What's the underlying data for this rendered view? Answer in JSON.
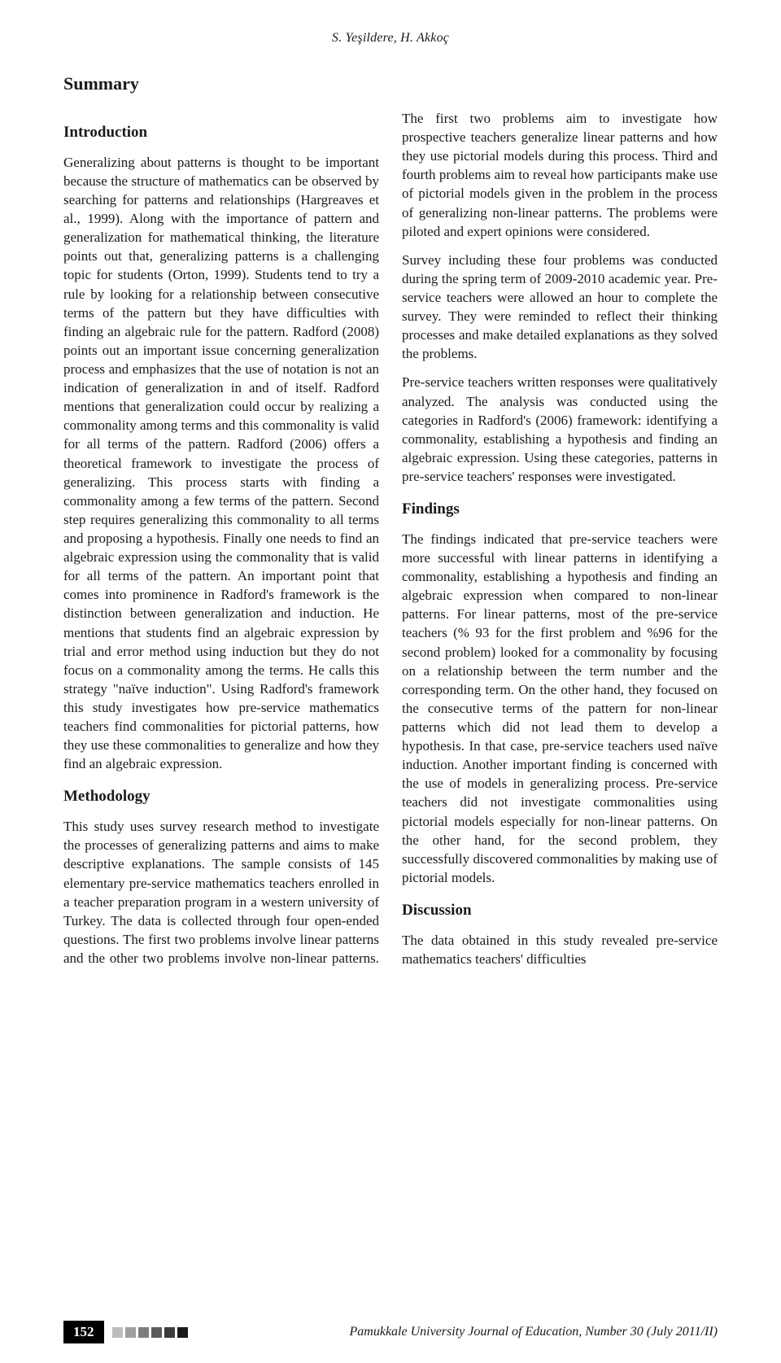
{
  "running_head": "S. Yeşildere, H. Akkoç",
  "summary_label": "Summary",
  "sections": {
    "intro_head": "Introduction",
    "intro_body": "Generalizing about patterns is thought to be important because the structure of mathematics can be observed by searching for patterns and relationships (Hargreaves et al., 1999). Along with the importance of pattern and generalization for mathematical thinking, the literature points out that, generalizing patterns is a challenging topic for students (Orton, 1999). Students tend to try a rule by looking for a relationship between consecutive terms of the pattern but they have difficulties with finding an algebraic rule for the pattern. Radford (2008) points out an important issue concerning generalization process and emphasizes that the use of notation is not an indication of generalization in and of itself. Radford mentions that generalization could occur by realizing a commonality among terms and this commonality is valid for all terms of the pattern. Radford (2006) offers a theoretical framework to investigate the process of generalizing. This process starts with finding a commonality among a few terms of the pattern. Second step requires generalizing this commonality to all terms and proposing a hypothesis. Finally one needs to find an algebraic expression using the commonality that is valid for all terms of the pattern. An important point that comes into prominence in Radford's framework is the distinction between generalization and induction. He mentions that students find an algebraic expression by trial and error method using induction but they do not focus on a commonality among the terms. He calls this strategy \"naïve induction\". Using Radford's framework this study investigates how pre-service mathematics teachers find commonalities for pictorial patterns, how they use these commonalities to generalize and how they find an algebraic expression.",
    "method_head": "Methodology",
    "method_body": "This study uses survey research method to investigate the processes of generalizing patterns and aims to make descriptive explanations. The sample consists of 145 elementary pre-service mathematics teachers enrolled in a teacher preparation program in a western university of Turkey. The data is collected through four open-ended questions. The first two problems involve linear patterns and the other two problems involve non-linear patterns. The first two problems aim to investigate how prospective teachers generalize linear patterns and how they use pictorial models during this process. Third and fourth problems aim to reveal how participants make use of pictorial models given in the problem in the process of generalizing non-linear patterns. The problems were piloted and expert opinions were considered.",
    "method_p2": "Survey including these four problems was conducted during the spring term of 2009-2010 academic year. Pre-service teachers were allowed an hour to complete the survey. They were reminded to reflect their thinking processes and make detailed explanations as they solved the problems.",
    "method_p3": "Pre-service teachers written responses were qualitatively analyzed. The analysis was conducted using the categories in Radford's (2006) framework: identifying a commonality, establishing a hypothesis and finding an algebraic expression. Using these categories, patterns in pre-service teachers' responses were investigated.",
    "findings_head": "Findings",
    "findings_body": "The findings indicated that pre-service teachers were more successful with linear patterns in identifying a commonality, establishing a hypothesis and finding an algebraic expression when compared to non-linear patterns. For linear patterns, most of the pre-service teachers (% 93 for the first problem and %96 for the second problem) looked for a commonality by focusing on a relationship between the term number and the corresponding term. On the other hand, they focused on the consecutive terms of the pattern for non-linear patterns which did not lead them to develop a hypothesis. In that case, pre-service teachers used naïve induction. Another important finding is concerned with the use of models in generalizing process. Pre-service teachers did not investigate commonalities using pictorial models especially for non-linear patterns. On the other hand, for the second problem, they successfully discovered commonalities by making use of pictorial models.",
    "discussion_head": "Discussion",
    "discussion_body": "The data obtained in this study revealed pre-service mathematics teachers' difficulties"
  },
  "footer": {
    "page_number": "152",
    "journal": "Pamukkale University Journal of Education, Number 30 (July  2011/II)",
    "square_colors": [
      "#bdbdbd",
      "#9e9e9e",
      "#7d7d7d",
      "#5c5c5c",
      "#3b3b3b",
      "#1a1a1a"
    ]
  }
}
